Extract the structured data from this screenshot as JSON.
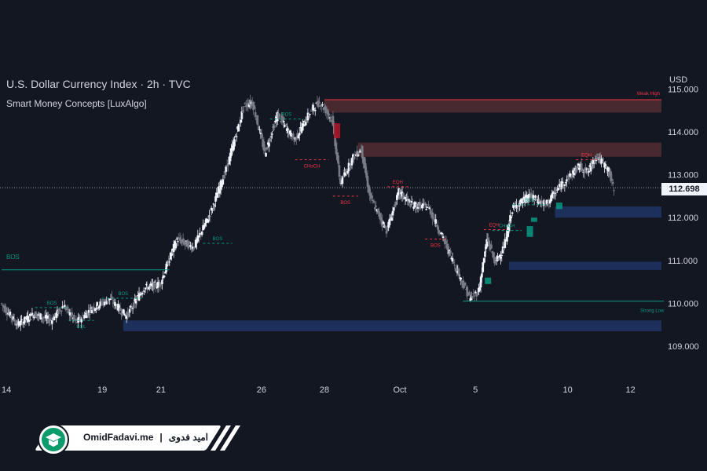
{
  "header": {
    "title": "U.S. Dollar Currency Index · 2h · TVC",
    "indicator": "Smart Money Concepts [LuxAlgo]",
    "currency": "USD",
    "last_price": "112.698"
  },
  "colors": {
    "background": "#131722",
    "up_candle": "#f0f3fa",
    "down_candle": "#787b86",
    "bullish_structure": "#089981",
    "bearish_structure": "#f23645",
    "supply_zone": "#4a2a30",
    "demand_zone": "#1e3160",
    "bullish_ob": "#089981",
    "bearish_ob": "#b2182b"
  },
  "branding": {
    "site": "OmidFadavi.me",
    "name": "امید فدوی",
    "logo_icon": "graduation-cap-icon"
  },
  "chart_data": {
    "type": "candlestick",
    "title": "U.S. Dollar Currency Index · 2h · TVC",
    "y_ticks": [
      "115.000",
      "114.000",
      "113.000",
      "112.000",
      "111.000",
      "110.000",
      "109.000"
    ],
    "ylim": [
      108.3,
      115.6
    ],
    "x_ticks": [
      "14",
      "19",
      "21",
      "26",
      "28",
      "Oct",
      "5",
      "10",
      "12"
    ],
    "x_tick_bar_index": [
      0,
      24,
      38,
      62,
      77,
      95,
      113,
      135,
      150
    ],
    "bar_count": 160,
    "last_price": 112.698,
    "grid": false,
    "path_anchors": [
      [
        0,
        110.0
      ],
      [
        4,
        109.5
      ],
      [
        8,
        109.75
      ],
      [
        12,
        109.6
      ],
      [
        15,
        109.95
      ],
      [
        18,
        109.55
      ],
      [
        22,
        109.9
      ],
      [
        26,
        110.1
      ],
      [
        30,
        109.7
      ],
      [
        34,
        110.35
      ],
      [
        38,
        110.45
      ],
      [
        42,
        111.5
      ],
      [
        46,
        111.3
      ],
      [
        50,
        112.1
      ],
      [
        54,
        113.2
      ],
      [
        58,
        114.6
      ],
      [
        60,
        114.7
      ],
      [
        63,
        113.5
      ],
      [
        66,
        114.4
      ],
      [
        70,
        113.8
      ],
      [
        74,
        114.5
      ],
      [
        76,
        114.7
      ],
      [
        79,
        114.3
      ],
      [
        81,
        112.8
      ],
      [
        84,
        113.4
      ],
      [
        86,
        113.6
      ],
      [
        88,
        112.5
      ],
      [
        92,
        111.7
      ],
      [
        95,
        112.6
      ],
      [
        98,
        112.3
      ],
      [
        102,
        112.25
      ],
      [
        106,
        111.4
      ],
      [
        110,
        110.5
      ],
      [
        112,
        110.1
      ],
      [
        114,
        110.3
      ],
      [
        116,
        111.5
      ],
      [
        118,
        110.95
      ],
      [
        120,
        111.3
      ],
      [
        122,
        112.2
      ],
      [
        126,
        112.5
      ],
      [
        130,
        112.3
      ],
      [
        134,
        112.8
      ],
      [
        138,
        113.2
      ],
      [
        140,
        113.05
      ],
      [
        142,
        113.45
      ],
      [
        145,
        113.1
      ],
      [
        146,
        112.7
      ]
    ],
    "zones": [
      {
        "kind": "supply",
        "y_top": 114.75,
        "y_bottom": 114.45,
        "x_start_bar": 77,
        "x_end_bar": 160,
        "label": "Weak High"
      },
      {
        "kind": "supply",
        "y_top": 113.75,
        "y_bottom": 113.42,
        "x_start_bar": 85,
        "x_end_bar": 160
      },
      {
        "kind": "demand",
        "y_top": 112.26,
        "y_bottom": 112.0,
        "x_start_bar": 132,
        "x_end_bar": 160
      },
      {
        "kind": "demand",
        "y_top": 110.97,
        "y_bottom": 110.78,
        "x_start_bar": 121,
        "x_end_bar": 160
      },
      {
        "kind": "demand",
        "y_top": 109.6,
        "y_bottom": 109.35,
        "x_start_bar": 29,
        "x_end_bar": 160
      }
    ],
    "structure_levels": [
      {
        "label": "BOS",
        "price": 110.78,
        "x_start_bar": 0,
        "x_end_bar": 40,
        "style": "solid",
        "color": "bullish"
      },
      {
        "label": "Strong Low",
        "price": 110.05,
        "x_start_bar": 110,
        "x_end_bar": 158,
        "style": "solid",
        "color": "bullish"
      },
      {
        "label": "BOS",
        "price": 109.9,
        "x_start_bar": 8,
        "x_end_bar": 16,
        "style": "dashed",
        "color": "bullish"
      },
      {
        "label": "BOS",
        "price": 110.12,
        "x_start_bar": 24,
        "x_end_bar": 34,
        "style": "dashed",
        "color": "bullish"
      },
      {
        "label": "BOS",
        "price": 111.4,
        "x_start_bar": 48,
        "x_end_bar": 55,
        "style": "dashed",
        "color": "bullish"
      },
      {
        "label": "BOS",
        "price": 114.3,
        "x_start_bar": 64,
        "x_end_bar": 72,
        "style": "dashed",
        "color": "bullish"
      },
      {
        "label": "BOS",
        "price": 112.3,
        "x_start_bar": 122,
        "x_end_bar": 130,
        "style": "dashed",
        "color": "bullish"
      },
      {
        "label": "CHoCH",
        "price": 111.7,
        "x_start_bar": 117,
        "x_end_bar": 124,
        "style": "dashed",
        "color": "bullish"
      },
      {
        "label": "CHoCH",
        "price": 113.35,
        "x_start_bar": 70,
        "x_end_bar": 78,
        "style": "dashed",
        "color": "bearish"
      },
      {
        "label": "BOS",
        "price": 112.5,
        "x_start_bar": 79,
        "x_end_bar": 85,
        "style": "dashed",
        "color": "bearish"
      },
      {
        "label": "BOS",
        "price": 111.5,
        "x_start_bar": 101,
        "x_end_bar": 106,
        "style": "dashed",
        "color": "bearish"
      },
      {
        "label": "EQH",
        "price": 112.72,
        "x_start_bar": 92,
        "x_end_bar": 97,
        "style": "dashed",
        "color": "bearish"
      },
      {
        "label": "EQH",
        "price": 111.72,
        "x_start_bar": 115,
        "x_end_bar": 120,
        "style": "dashed",
        "color": "bearish"
      },
      {
        "label": "EQH",
        "price": 113.35,
        "x_start_bar": 137,
        "x_end_bar": 142,
        "style": "dashed",
        "color": "bearish"
      },
      {
        "label": "EQL",
        "price": 109.6,
        "x_start_bar": 16,
        "x_end_bar": 22,
        "style": "dashed",
        "color": "bullish"
      }
    ],
    "order_blocks": [
      {
        "kind": "bearish",
        "x_bar": 80,
        "y_top": 114.2,
        "y_bottom": 113.85
      },
      {
        "kind": "bullish",
        "x_bar": 116,
        "y_top": 110.6,
        "y_bottom": 110.45
      },
      {
        "kind": "bullish",
        "x_bar": 126,
        "y_top": 111.8,
        "y_bottom": 111.55
      },
      {
        "kind": "bullish",
        "x_bar": 127,
        "y_top": 112.0,
        "y_bottom": 111.9
      },
      {
        "kind": "bullish",
        "x_bar": 133,
        "y_top": 112.35,
        "y_bottom": 112.2
      }
    ]
  }
}
